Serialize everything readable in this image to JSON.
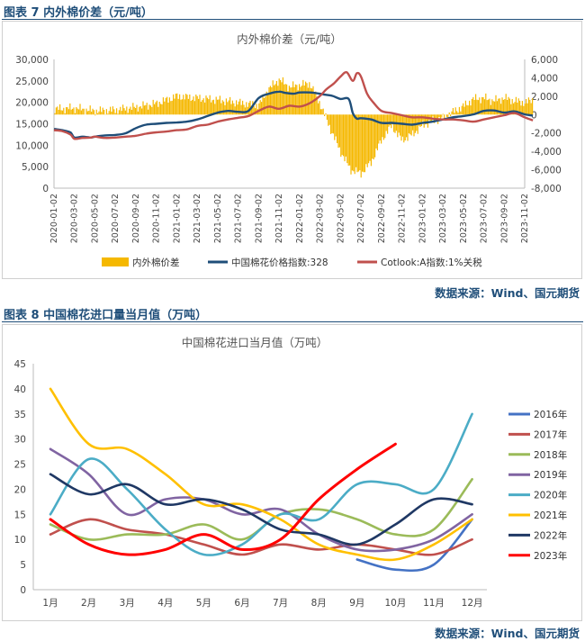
{
  "figure7": {
    "caption": "图表 7  内外棉价差（元/吨）",
    "source": "数据来源：Wind、国元期货",
    "chart_data": {
      "type": "bar+line",
      "title": "内外棉价差（元/吨）",
      "x_ticks": [
        "2020-01-02",
        "2020-03-02",
        "2020-05-02",
        "2020-07-02",
        "2020-09-02",
        "2020-11-02",
        "2021-01-02",
        "2021-03-02",
        "2021-05-02",
        "2021-07-02",
        "2021-09-02",
        "2021-11-02",
        "2022-01-02",
        "2022-03-02",
        "2022-05-02",
        "2022-07-02",
        "2022-09-02",
        "2022-11-02",
        "2023-01-02",
        "2023-03-02",
        "2023-05-02",
        "2023-07-02",
        "2023-09-02",
        "2023-11-02"
      ],
      "y_left": {
        "min": 0,
        "max": 30000,
        "step": 5000,
        "tick_labels": [
          "0",
          "5,000",
          "10,000",
          "15,000",
          "20,000",
          "25,000",
          "30,000"
        ]
      },
      "y_right": {
        "min": -8000,
        "max": 6000,
        "step": 2000,
        "tick_labels": [
          "-8,000",
          "-6,000",
          "-4,000",
          "-2,000",
          "0",
          "2,000",
          "4,000",
          "6,000"
        ]
      },
      "legend_position": "bottom",
      "series": [
        {
          "name": "内外棉价差",
          "kind": "bar",
          "axis": "right",
          "color": "#f5b800",
          "x": [
            0,
            1,
            2,
            3,
            4,
            5,
            6,
            7,
            8,
            9,
            10,
            10.5,
            11,
            11.5,
            12,
            12.5,
            13,
            13.5,
            14,
            14.5,
            15,
            15.5,
            16,
            16.5,
            17,
            17.5,
            18,
            18.5,
            19,
            19.5,
            20,
            20.5,
            21,
            21.5,
            22,
            22.5,
            23,
            23.4
          ],
          "y": [
            600,
            700,
            400,
            500,
            800,
            1200,
            2000,
            1800,
            1600,
            1300,
            1000,
            2800,
            3800,
            3000,
            3200,
            3400,
            1200,
            -1500,
            -4000,
            -6000,
            -6400,
            -5200,
            -2800,
            -1200,
            -2800,
            -2200,
            -1200,
            -700,
            -400,
            300,
            900,
            1700,
            1800,
            1500,
            1800,
            1500,
            1300,
            1600
          ]
        },
        {
          "name": "中国棉花价格指数:328",
          "kind": "line",
          "axis": "left",
          "color": "#1f4e79",
          "x": [
            0,
            0.4,
            0.8,
            1,
            1.4,
            1.8,
            2,
            2.5,
            3,
            3.5,
            4,
            4.5,
            5,
            5.5,
            6,
            6.5,
            7,
            7.5,
            8,
            8.5,
            9,
            9.5,
            10,
            10.5,
            11,
            11.3,
            11.7,
            12,
            12.5,
            13,
            13.2,
            13.6,
            14,
            14.4,
            14.6,
            14.8,
            15,
            15.5,
            16,
            16.5,
            17,
            17.5,
            18,
            18.5,
            19,
            19.5,
            20,
            20.5,
            21,
            21.5,
            22,
            22.5,
            23,
            23.4
          ],
          "y": [
            13800,
            13500,
            13000,
            11800,
            12000,
            11800,
            12000,
            12300,
            12400,
            12800,
            14000,
            14800,
            15000,
            15200,
            15300,
            15500,
            16000,
            16800,
            17600,
            18000,
            17800,
            18000,
            21000,
            22000,
            22500,
            22200,
            22000,
            22300,
            22300,
            22000,
            21800,
            21500,
            20800,
            20800,
            17500,
            16200,
            16300,
            16000,
            15200,
            15200,
            15000,
            14800,
            15200,
            15500,
            16000,
            16500,
            16800,
            17200,
            18000,
            18100,
            17600,
            17900,
            17200,
            16900
          ]
        },
        {
          "name": "Cotlook:A指数:1%关税",
          "kind": "line",
          "axis": "left",
          "color": "#c0504d",
          "x": [
            0,
            0.4,
            0.8,
            1,
            1.4,
            1.8,
            2,
            2.5,
            3,
            3.5,
            4,
            4.5,
            5,
            5.5,
            6,
            6.5,
            7,
            7.5,
            8,
            8.5,
            9,
            9.5,
            10,
            10.5,
            11,
            11.5,
            12,
            12.5,
            13,
            13.3,
            13.7,
            14,
            14.3,
            14.6,
            14.8,
            15,
            15.3,
            15.6,
            16,
            16.5,
            17,
            17.5,
            18,
            18.5,
            19,
            19.5,
            20,
            20.5,
            21,
            21.5,
            22,
            22.5,
            23,
            23.4
          ],
          "y": [
            13500,
            13300,
            12500,
            11500,
            11700,
            11800,
            12000,
            11700,
            11800,
            12000,
            12200,
            12700,
            13000,
            13200,
            13500,
            13700,
            14500,
            14800,
            15500,
            16000,
            16400,
            16800,
            18000,
            19000,
            18500,
            19200,
            19000,
            19800,
            21500,
            23000,
            24500,
            26000,
            27000,
            25000,
            26800,
            26000,
            22000,
            20000,
            18000,
            17500,
            17000,
            16500,
            16500,
            16200,
            16000,
            16000,
            15800,
            15500,
            16000,
            16500,
            17000,
            17500,
            16500,
            15800
          ]
        }
      ]
    }
  },
  "figure8": {
    "caption": "图表 8  中国棉花进口量当月值（万吨）",
    "source": "数据来源：Wind、国元期货",
    "chart_data": {
      "type": "line",
      "title": "中国棉花进口当月值（万吨）",
      "categories": [
        "1月",
        "2月",
        "3月",
        "4月",
        "5月",
        "6月",
        "7月",
        "8月",
        "9月",
        "10月",
        "11月",
        "12月"
      ],
      "y_axis": {
        "min": 0,
        "max": 45,
        "step": 5,
        "tick_labels": [
          "0",
          "5",
          "10",
          "15",
          "20",
          "25",
          "30",
          "35",
          "40",
          "45"
        ]
      },
      "legend_position": "right",
      "series": [
        {
          "name": "2016年",
          "color": "#4472c4",
          "values": [
            null,
            null,
            null,
            null,
            null,
            null,
            null,
            null,
            6,
            4,
            5,
            14
          ]
        },
        {
          "name": "2017年",
          "color": "#c0504d",
          "values": [
            11,
            14,
            12,
            11,
            9,
            7,
            9,
            8,
            9,
            8,
            7,
            10
          ]
        },
        {
          "name": "2018年",
          "color": "#9bbb59",
          "values": [
            13,
            10,
            11,
            11,
            13,
            10,
            15,
            16,
            14,
            11,
            12,
            22
          ]
        },
        {
          "name": "2019年",
          "color": "#8064a2",
          "values": [
            28,
            23,
            15,
            18,
            18,
            15,
            16,
            11,
            8,
            8,
            10,
            15
          ]
        },
        {
          "name": "2020年",
          "color": "#4bacc6",
          "values": [
            15,
            26,
            20,
            12,
            7,
            9,
            15,
            14,
            21,
            21,
            20,
            35
          ]
        },
        {
          "name": "2021年",
          "color": "#ffc000",
          "values": [
            40,
            29,
            28,
            23,
            17,
            17,
            14,
            9,
            7,
            6,
            9,
            14
          ]
        },
        {
          "name": "2022年",
          "color": "#1f3864",
          "values": [
            23,
            19,
            21,
            17,
            18,
            16,
            12,
            11,
            9,
            13,
            18,
            17
          ]
        },
        {
          "name": "2023年",
          "color": "#ff0000",
          "values": [
            14,
            9,
            7,
            8,
            11,
            8,
            10,
            18,
            24,
            29,
            null,
            null
          ]
        }
      ]
    }
  }
}
